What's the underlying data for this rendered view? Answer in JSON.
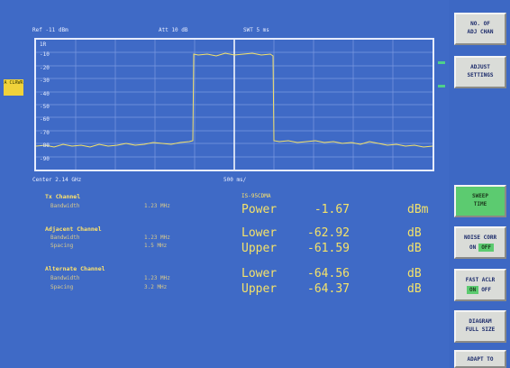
{
  "window": {
    "title": ""
  },
  "header": {
    "ref": "Ref  -11 dBm",
    "att": "Att  10 dB",
    "swt": "SWT 5 ms"
  },
  "chart": {
    "top_label": "1R",
    "y_ticks": [
      "-10",
      "-20",
      "-30",
      "-40",
      "-50",
      "-60",
      "-70",
      "-80",
      "-90"
    ],
    "marker_label": "A\nCLRWR",
    "center": "Center 2.14 GHz",
    "span": "500 ms/"
  },
  "info": {
    "tx_head": "Tx Channel",
    "tx_bw_label": "Bandwidth",
    "tx_bw": "1.23 MHz",
    "adj_head": "Adjacent Channel",
    "adj_bw_label": "Bandwidth",
    "adj_bw": "1.23 MHz",
    "adj_sp_label": "Spacing",
    "adj_sp": "1.5 MHz",
    "alt_head": "Alternate Channel",
    "alt_bw_label": "Bandwidth",
    "alt_bw": "1.23 MHz",
    "alt_sp_label": "Spacing",
    "alt_sp": "3.2 MHz"
  },
  "results": {
    "standard": "IS-95CDMA",
    "rows": [
      {
        "label": "Power",
        "value": "-1.67",
        "unit": "dBm"
      },
      {
        "label": "Lower",
        "value": "-62.92",
        "unit": "dB"
      },
      {
        "label": "Upper",
        "value": "-61.59",
        "unit": "dB"
      },
      {
        "label": "Lower",
        "value": "-64.56",
        "unit": "dB"
      },
      {
        "label": "Upper",
        "value": "-64.37",
        "unit": "dB"
      }
    ]
  },
  "softkeys": {
    "no_of_adj_chan": [
      "NO. OF",
      "ADJ CHAN"
    ],
    "adjust_settings": [
      "ADJUST",
      "SETTINGS"
    ],
    "sweep_time": [
      "SWEEP",
      "TIME"
    ],
    "noise_corr": {
      "label": "NOISE CORR",
      "on": "ON",
      "off": "OFF"
    },
    "fast_aclr": {
      "label": "FAST ACLR",
      "on": "ON",
      "off": "OFF"
    },
    "diagram_full_size": [
      "DIAGRAM",
      "FULL SIZE"
    ],
    "adapt_to": [
      "ADAPT TO"
    ]
  },
  "colors": {
    "background": "#3f6ac6",
    "trace": "#f4e26a",
    "accent_green": "#5ccb70"
  }
}
